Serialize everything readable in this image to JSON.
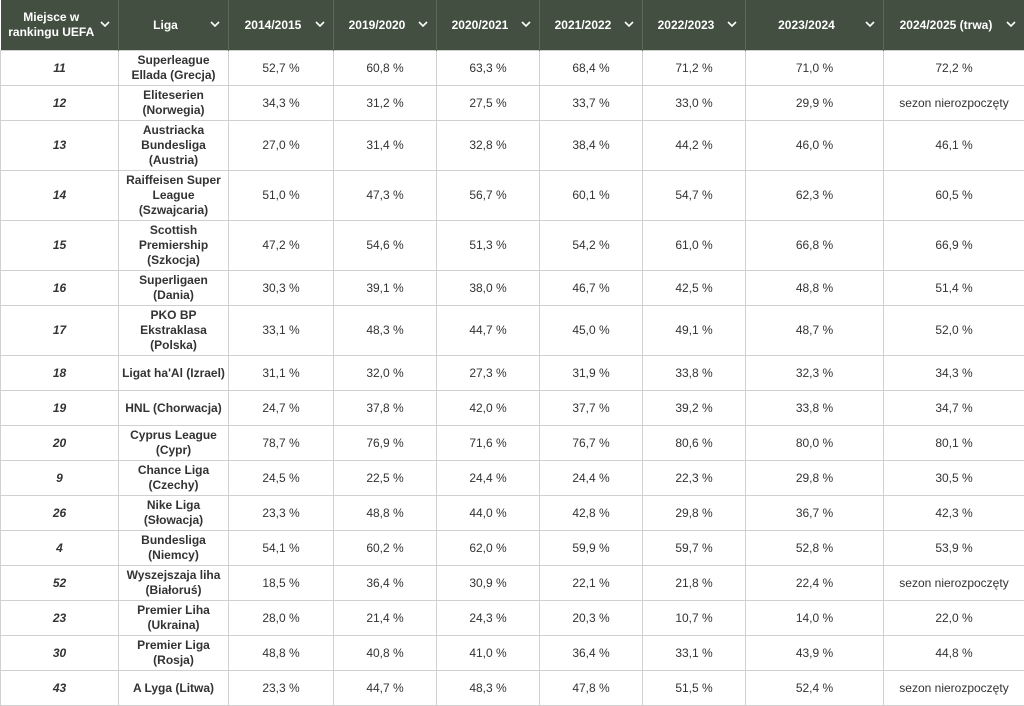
{
  "table": {
    "columns": [
      "Miejsce w rankingu UEFA",
      "Liga",
      "2014/2015",
      "2019/2020",
      "2020/2021",
      "2021/2022",
      "2022/2023",
      "2023/2024",
      "2024/2025 (trwa)"
    ],
    "rows": [
      [
        "11",
        "Superleague Ellada (Grecja)",
        "52,7 %",
        "60,8 %",
        "63,3 %",
        "68,4 %",
        "71,2 %",
        "71,0 %",
        "72,2 %"
      ],
      [
        "12",
        "Eliteserien (Norwegia)",
        "34,3 %",
        "31,2 %",
        "27,5 %",
        "33,7 %",
        "33,0 %",
        "29,9 %",
        "sezon nierozpoczęty"
      ],
      [
        "13",
        "Austriacka Bundesliga (Austria)",
        "27,0 %",
        "31,4 %",
        "32,8 %",
        "38,4 %",
        "44,2 %",
        "46,0 %",
        "46,1 %"
      ],
      [
        "14",
        "Raiffeisen Super League (Szwajcaria)",
        "51,0 %",
        "47,3 %",
        "56,7 %",
        "60,1 %",
        "54,7 %",
        "62,3 %",
        "60,5 %"
      ],
      [
        "15",
        "Scottish Premiership (Szkocja)",
        "47,2 %",
        "54,6 %",
        "51,3 %",
        "54,2 %",
        "61,0 %",
        "66,8 %",
        "66,9 %"
      ],
      [
        "16",
        "Superligaen (Dania)",
        "30,3 %",
        "39,1 %",
        "38,0 %",
        "46,7 %",
        "42,5 %",
        "48,8 %",
        "51,4 %"
      ],
      [
        "17",
        "PKO BP Ekstraklasa (Polska)",
        "33,1 %",
        "48,3 %",
        "44,7 %",
        "45,0 %",
        "49,1 %",
        "48,7 %",
        "52,0 %"
      ],
      [
        "18",
        "Ligat ha'Al (Izrael)",
        "31,1 %",
        "32,0 %",
        "27,3 %",
        "31,9 %",
        "33,8 %",
        "32,3 %",
        "34,3 %"
      ],
      [
        "19",
        "HNL (Chorwacja)",
        "24,7 %",
        "37,8 %",
        "42,0 %",
        "37,7 %",
        "39,2 %",
        "33,8 %",
        "34,7 %"
      ],
      [
        "20",
        "Cyprus League (Cypr)",
        "78,7 %",
        "76,9 %",
        "71,6 %",
        "76,7 %",
        "80,6 %",
        "80,0 %",
        "80,1 %"
      ],
      [
        "9",
        "Chance Liga (Czechy)",
        "24,5 %",
        "22,5 %",
        "24,4 %",
        "24,4 %",
        "22,3 %",
        "29,8 %",
        "30,5 %"
      ],
      [
        "26",
        "Nike Liga (Słowacja)",
        "23,3 %",
        "48,8 %",
        "44,0 %",
        "42,8 %",
        "29,8 %",
        "36,7 %",
        "42,3 %"
      ],
      [
        "4",
        "Bundesliga (Niemcy)",
        "54,1 %",
        "60,2 %",
        "62,0 %",
        "59,9 %",
        "59,7 %",
        "52,8 %",
        "53,9 %"
      ],
      [
        "52",
        "Wyszejszaja liha (Białoruś)",
        "18,5 %",
        "36,4 %",
        "30,9 %",
        "22,1 %",
        "21,8 %",
        "22,4 %",
        "sezon nierozpoczęty"
      ],
      [
        "23",
        "Premier Liha (Ukraina)",
        "28,0 %",
        "21,4 %",
        "24,3 %",
        "20,3 %",
        "10,7 %",
        "14,0 %",
        "22,0 %"
      ],
      [
        "30",
        "Premier Liga (Rosja)",
        "48,8 %",
        "40,8 %",
        "41,0 %",
        "36,4 %",
        "33,1 %",
        "43,9 %",
        "44,8 %"
      ],
      [
        "43",
        "A Lyga (Litwa)",
        "23,3 %",
        "44,7 %",
        "48,3 %",
        "47,8 %",
        "51,5 %",
        "52,4 %",
        "sezon nierozpoczęty"
      ]
    ]
  }
}
